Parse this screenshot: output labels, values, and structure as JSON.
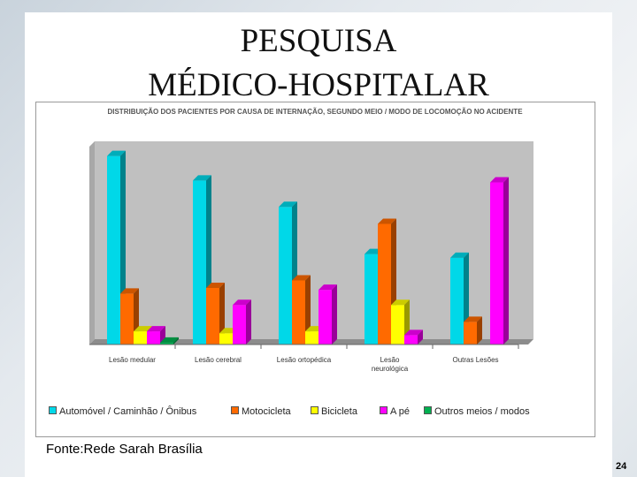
{
  "slide": {
    "title_line1": "PESQUISA",
    "title_line2": "MÉDICO-HOSPITALAR",
    "source": "Fonte:Rede Sarah Brasília",
    "page_number": "24"
  },
  "chart_data": {
    "type": "bar",
    "title": "DISTRIBUIÇÃO DOS PACIENTES POR CAUSA DE INTERNAÇÃO, SEGUNDO MEIO / MODO DE LOCOMOÇÃO NO ACIDENTE",
    "categories": [
      [
        "Lesão medular"
      ],
      [
        "Lesão cerebral"
      ],
      [
        "Lesão ortopédica"
      ],
      [
        "Lesão",
        "neurológica"
      ],
      [
        "Outras Lesões"
      ]
    ],
    "series": [
      {
        "name": "Automóvel / Caminhão / Ônibus",
        "color": "#00d8e8",
        "values": [
          100,
          87,
          73,
          48,
          46
        ]
      },
      {
        "name": "Motocicleta",
        "color": "#ff6a00",
        "values": [
          27,
          30,
          34,
          64,
          12
        ]
      },
      {
        "name": "Bicicleta",
        "color": "#ffff00",
        "values": [
          7,
          6,
          7,
          21,
          0
        ]
      },
      {
        "name": "A pé",
        "color": "#ff00ff",
        "values": [
          7,
          21,
          29,
          5,
          86
        ]
      },
      {
        "name": "Outros meios / modos",
        "color": "#00b050",
        "values": [
          1,
          0,
          0,
          0,
          0
        ]
      }
    ],
    "ylim": [
      0,
      105
    ],
    "xlabel": "",
    "ylabel": "",
    "grid": false,
    "legend_position": "bottom"
  }
}
